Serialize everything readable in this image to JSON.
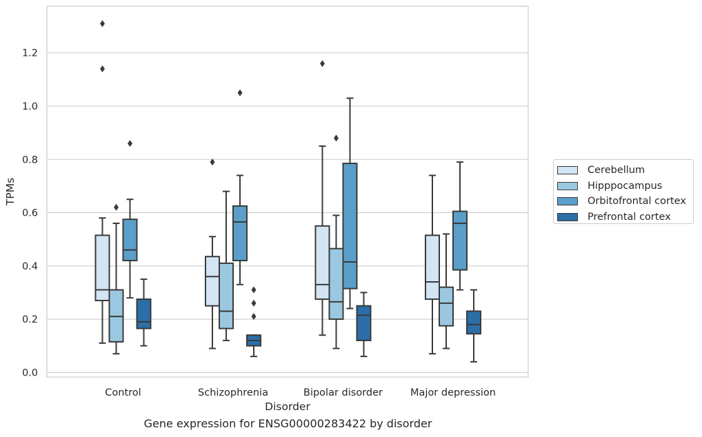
{
  "chart_data": {
    "type": "box",
    "caption": "Gene expression for ENSG00000283422 by disorder",
    "xlabel": "Disorder",
    "ylabel": "TPMs",
    "ylim": [
      -0.02,
      1.37
    ],
    "yticks": [
      "0.0",
      "0.2",
      "0.4",
      "0.6",
      "0.8",
      "1.0",
      "1.2"
    ],
    "grid": "horizontal",
    "legend_position": "right",
    "categories": [
      "Control",
      "Schizophrenia",
      "Bipolar disorder",
      "Major depression"
    ],
    "series": [
      {
        "name": "Cerebellum",
        "color": "#d3e4f3",
        "boxes": [
          {
            "whisker_low": 0.11,
            "q1": 0.27,
            "median": 0.31,
            "q3": 0.515,
            "whisker_high": 0.58,
            "outliers": [
              1.14,
              1.31
            ]
          },
          {
            "whisker_low": 0.09,
            "q1": 0.25,
            "median": 0.36,
            "q3": 0.435,
            "whisker_high": 0.51,
            "outliers": [
              0.79
            ]
          },
          {
            "whisker_low": 0.14,
            "q1": 0.275,
            "median": 0.33,
            "q3": 0.55,
            "whisker_high": 0.85,
            "outliers": [
              1.16
            ]
          },
          {
            "whisker_low": 0.07,
            "q1": 0.275,
            "median": 0.34,
            "q3": 0.515,
            "whisker_high": 0.74,
            "outliers": []
          }
        ]
      },
      {
        "name": "Hipppocampus",
        "color": "#9ac8e0",
        "boxes": [
          {
            "whisker_low": 0.07,
            "q1": 0.115,
            "median": 0.21,
            "q3": 0.31,
            "whisker_high": 0.56,
            "outliers": [
              0.62
            ]
          },
          {
            "whisker_low": 0.12,
            "q1": 0.165,
            "median": 0.23,
            "q3": 0.41,
            "whisker_high": 0.68,
            "outliers": []
          },
          {
            "whisker_low": 0.09,
            "q1": 0.2,
            "median": 0.265,
            "q3": 0.465,
            "whisker_high": 0.59,
            "outliers": [
              0.88
            ]
          },
          {
            "whisker_low": 0.09,
            "q1": 0.175,
            "median": 0.26,
            "q3": 0.32,
            "whisker_high": 0.52,
            "outliers": []
          }
        ]
      },
      {
        "name": "Orbitofrontal cortex",
        "color": "#5a9ec9",
        "boxes": [
          {
            "whisker_low": 0.28,
            "q1": 0.42,
            "median": 0.46,
            "q3": 0.575,
            "whisker_high": 0.65,
            "outliers": [
              0.86
            ]
          },
          {
            "whisker_low": 0.33,
            "q1": 0.42,
            "median": 0.565,
            "q3": 0.625,
            "whisker_high": 0.74,
            "outliers": [
              1.05
            ]
          },
          {
            "whisker_low": 0.24,
            "q1": 0.315,
            "median": 0.415,
            "q3": 0.785,
            "whisker_high": 1.03,
            "outliers": []
          },
          {
            "whisker_low": 0.31,
            "q1": 0.385,
            "median": 0.56,
            "q3": 0.605,
            "whisker_high": 0.79,
            "outliers": []
          }
        ]
      },
      {
        "name": "Prefrontal cortex",
        "color": "#2b6ea8",
        "boxes": [
          {
            "whisker_low": 0.1,
            "q1": 0.165,
            "median": 0.19,
            "q3": 0.275,
            "whisker_high": 0.35,
            "outliers": []
          },
          {
            "whisker_low": 0.06,
            "q1": 0.1,
            "median": 0.12,
            "q3": 0.14,
            "whisker_high": 0.14,
            "outliers": [
              0.21,
              0.26,
              0.31
            ]
          },
          {
            "whisker_low": 0.06,
            "q1": 0.12,
            "median": 0.215,
            "q3": 0.25,
            "whisker_high": 0.3,
            "outliers": []
          },
          {
            "whisker_low": 0.04,
            "q1": 0.145,
            "median": 0.18,
            "q3": 0.23,
            "whisker_high": 0.31,
            "outliers": []
          }
        ]
      }
    ]
  }
}
